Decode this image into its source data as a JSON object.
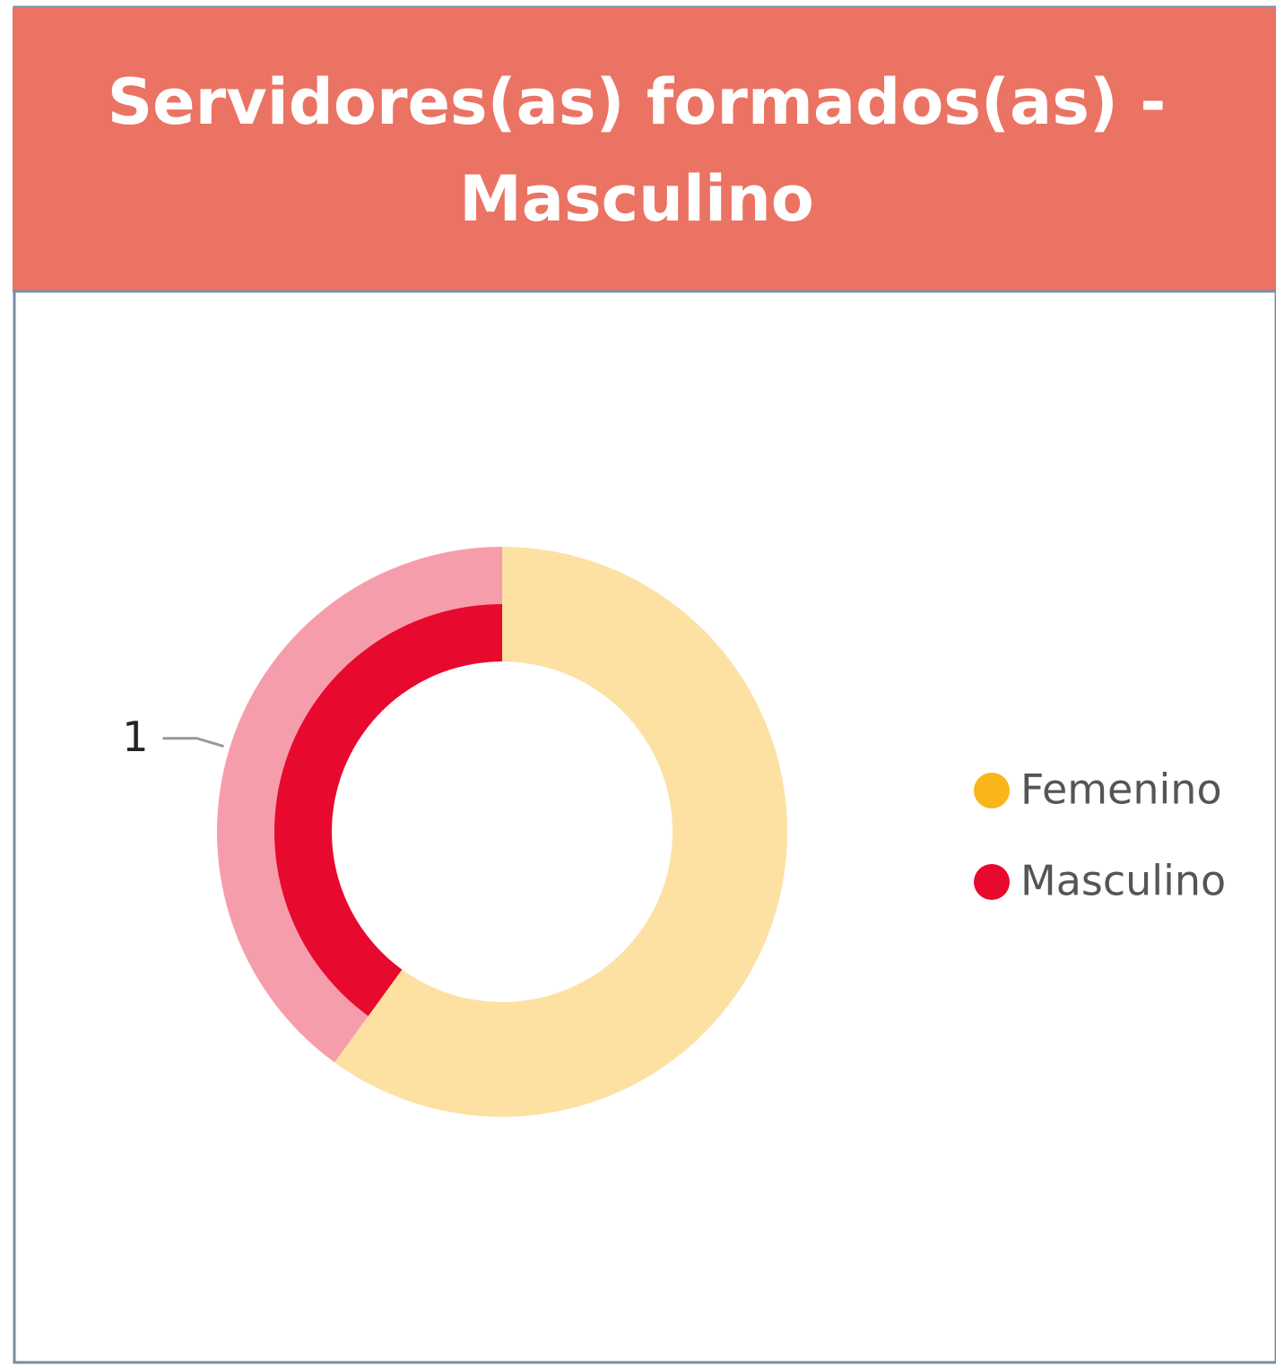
{
  "chart_data": {
    "type": "donut",
    "title": "Servidores(as) formados(as) - Masculino",
    "categories": [
      "Femenino",
      "Masculino"
    ],
    "values": [
      1.5,
      1
    ],
    "colors": [
      "#F9B51A",
      "#E8092E"
    ],
    "highlight": "Masculino",
    "legend": "right"
  }
}
